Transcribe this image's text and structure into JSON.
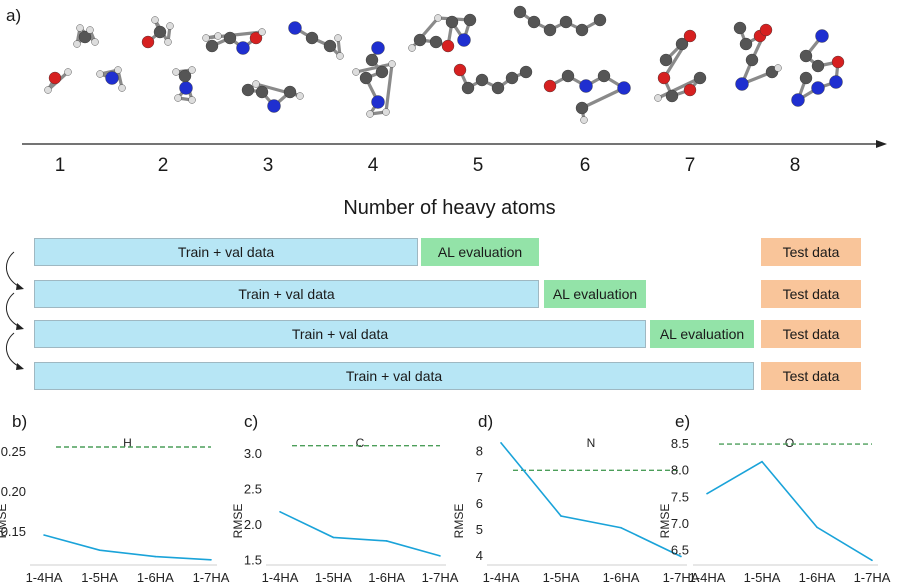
{
  "panels": {
    "a": "a)",
    "b": "b)",
    "c": "c)",
    "d": "d)",
    "e": "e)"
  },
  "axis_numbers": [
    "1",
    "2",
    "3",
    "4",
    "5",
    "6",
    "7",
    "8"
  ],
  "axis_title": "Number of heavy atoms",
  "workflow": {
    "train_label": "Train + val data",
    "al_label": "AL evaluation",
    "test_label": "Test data",
    "rows": [
      {
        "train_end_heavy_atoms": 4,
        "has_al": true
      },
      {
        "train_end_heavy_atoms": 5,
        "has_al": true
      },
      {
        "train_end_heavy_atoms": 6,
        "has_al": true
      },
      {
        "train_end_heavy_atoms": 7,
        "has_al": false
      }
    ]
  },
  "colors": {
    "train": "#b7e6f5",
    "al": "#93e3a8",
    "test": "#f9c59a",
    "line": "#1aa3d9",
    "dashed": "#4c9e5a",
    "atom_c": "#555555",
    "atom_h": "#dddddd",
    "atom_o": "#d62020",
    "atom_n": "#1f2fd0"
  },
  "chart_data": [
    {
      "type": "line",
      "panel": "b",
      "title": "H",
      "ylabel": "RMSE",
      "categories": [
        "1-4HA",
        "1-5HA",
        "1-6HA",
        "1-7HA"
      ],
      "values": [
        0.145,
        0.126,
        0.118,
        0.114
      ],
      "baseline": 0.255,
      "ylim": [
        0.11,
        0.27
      ],
      "yticks": [
        0.15,
        0.2,
        0.25
      ],
      "ytick_labels": [
        "0.15",
        "0.20",
        "0.25"
      ]
    },
    {
      "type": "line",
      "panel": "c",
      "title": "C",
      "ylabel": "RMSE",
      "categories": [
        "1-4HA",
        "1-5HA",
        "1-6HA",
        "1-7HA"
      ],
      "values": [
        2.17,
        1.81,
        1.76,
        1.55
      ],
      "baseline": 3.1,
      "ylim": [
        1.45,
        3.25
      ],
      "yticks": [
        1.5,
        2.0,
        2.5,
        3.0
      ],
      "ytick_labels": [
        "1.5",
        "2.0",
        "2.5",
        "3.0"
      ]
    },
    {
      "type": "line",
      "panel": "d",
      "title": "N",
      "ylabel": "RMSE",
      "categories": [
        "1-4HA",
        "1-5HA",
        "1-6HA",
        "1-7HA"
      ],
      "values": [
        8.3,
        5.5,
        5.05,
        3.95
      ],
      "baseline": 7.25,
      "ylim": [
        3.7,
        8.6
      ],
      "yticks": [
        4,
        5,
        6,
        7,
        8
      ],
      "ytick_labels": [
        "4",
        "5",
        "6",
        "7",
        "8"
      ]
    },
    {
      "type": "line",
      "panel": "e",
      "title": "O",
      "ylabel": "RMSE",
      "categories": [
        "1-4HA",
        "1-5HA",
        "1-6HA",
        "1-7HA"
      ],
      "values": [
        7.55,
        8.15,
        6.92,
        6.3
      ],
      "baseline": 8.48,
      "ylim": [
        6.25,
        8.65
      ],
      "yticks": [
        6.5,
        7.0,
        7.5,
        8.0,
        8.5
      ],
      "ytick_labels": [
        "6.5",
        "7.0",
        "7.5",
        "8.0",
        "8.5"
      ]
    }
  ]
}
